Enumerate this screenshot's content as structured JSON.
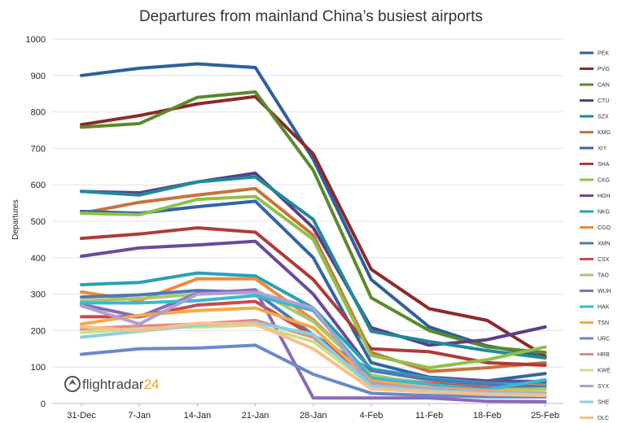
{
  "chart_data": {
    "type": "line",
    "title": "Departures from mainland China’s busiest airports",
    "xlabel": "",
    "ylabel": "Departures",
    "categories": [
      "31-Dec",
      "7-Jan",
      "14-Jan",
      "21-Jan",
      "28-Jan",
      "4-Feb",
      "11-Feb",
      "18-Feb",
      "25-Feb"
    ],
    "ylim": [
      0,
      1000
    ],
    "yticks": [
      0,
      100,
      200,
      300,
      400,
      500,
      600,
      700,
      800,
      900,
      1000
    ],
    "grid": true,
    "legend_position": "right",
    "series": [
      {
        "name": "PEK",
        "color": "#2e5f9e",
        "values": [
          900,
          920,
          932,
          922,
          670,
          340,
          210,
          158,
          130
        ]
      },
      {
        "name": "PVG",
        "color": "#8b2a2a",
        "values": [
          765,
          790,
          822,
          842,
          685,
          368,
          260,
          228,
          130
        ]
      },
      {
        "name": "CAN",
        "color": "#5a8a2a",
        "values": [
          758,
          768,
          840,
          855,
          640,
          290,
          200,
          155,
          140
        ]
      },
      {
        "name": "CTU",
        "color": "#5a3f85",
        "values": [
          582,
          578,
          608,
          632,
          482,
          208,
          160,
          175,
          210
        ]
      },
      {
        "name": "SZX",
        "color": "#1f8a9a",
        "values": [
          582,
          572,
          608,
          622,
          505,
          198,
          170,
          145,
          125
        ]
      },
      {
        "name": "KMG",
        "color": "#c8733a",
        "values": [
          522,
          552,
          572,
          590,
          462,
          140,
          88,
          98,
          112
        ]
      },
      {
        "name": "XIY",
        "color": "#3465a4",
        "values": [
          527,
          522,
          540,
          555,
          400,
          112,
          72,
          62,
          82
        ]
      },
      {
        "name": "SHA",
        "color": "#b03a3a",
        "values": [
          453,
          465,
          482,
          470,
          340,
          150,
          142,
          112,
          105
        ]
      },
      {
        "name": "CKG",
        "color": "#8fc04a",
        "values": [
          522,
          518,
          560,
          568,
          450,
          132,
          98,
          120,
          155
        ]
      },
      {
        "name": "HGH",
        "color": "#6a4a9a",
        "values": [
          404,
          427,
          435,
          445,
          300,
          92,
          72,
          62,
          60
        ]
      },
      {
        "name": "NKG",
        "color": "#2ba0b5",
        "values": [
          326,
          332,
          358,
          350,
          262,
          95,
          70,
          55,
          52
        ]
      },
      {
        "name": "CGO",
        "color": "#f08a3a",
        "values": [
          306,
          282,
          342,
          342,
          230,
          75,
          55,
          52,
          48
        ]
      },
      {
        "name": "XMN",
        "color": "#4a7ab8",
        "values": [
          292,
          298,
          310,
          305,
          188,
          90,
          65,
          52,
          45
        ]
      },
      {
        "name": "CSX",
        "color": "#c84a4a",
        "values": [
          238,
          238,
          270,
          280,
          185,
          72,
          55,
          42,
          40
        ]
      },
      {
        "name": "TAO",
        "color": "#a8c86a",
        "values": [
          282,
          288,
          300,
          312,
          225,
          78,
          52,
          38,
          40
        ]
      },
      {
        "name": "WUH",
        "color": "#8a6ab8",
        "values": [
          272,
          238,
          302,
          312,
          15,
          15,
          15,
          6,
          5
        ]
      },
      {
        "name": "HAK",
        "color": "#3ab8d0",
        "values": [
          276,
          276,
          282,
          296,
          255,
          70,
          52,
          38,
          65
        ]
      },
      {
        "name": "TSN",
        "color": "#f8a84a",
        "values": [
          218,
          242,
          255,
          262,
          208,
          62,
          42,
          35,
          30
        ]
      },
      {
        "name": "URC",
        "color": "#6a8ac8",
        "values": [
          135,
          150,
          152,
          160,
          80,
          28,
          22,
          18,
          18
        ]
      },
      {
        "name": "HRB",
        "color": "#e08a8a",
        "values": [
          205,
          212,
          218,
          228,
          182,
          55,
          38,
          28,
          25
        ]
      },
      {
        "name": "KWE",
        "color": "#c8e08a",
        "values": [
          195,
          205,
          210,
          215,
          170,
          50,
          38,
          30,
          30
        ]
      },
      {
        "name": "SYX",
        "color": "#b0a0d0",
        "values": [
          268,
          218,
          300,
          305,
          262,
          50,
          40,
          30,
          28
        ]
      },
      {
        "name": "SHE",
        "color": "#8ad0e0",
        "values": [
          182,
          198,
          215,
          222,
          190,
          48,
          35,
          28,
          25
        ]
      },
      {
        "name": "DLC",
        "color": "#f8c08a",
        "values": [
          210,
          200,
          220,
          218,
          150,
          40,
          32,
          25,
          22
        ]
      }
    ]
  },
  "branding": {
    "logo_text": "flightradar24",
    "logo_name": "flightradar"
  },
  "colors": {
    "brand_accent": "#f0a020",
    "logo_dark": "#555555"
  }
}
